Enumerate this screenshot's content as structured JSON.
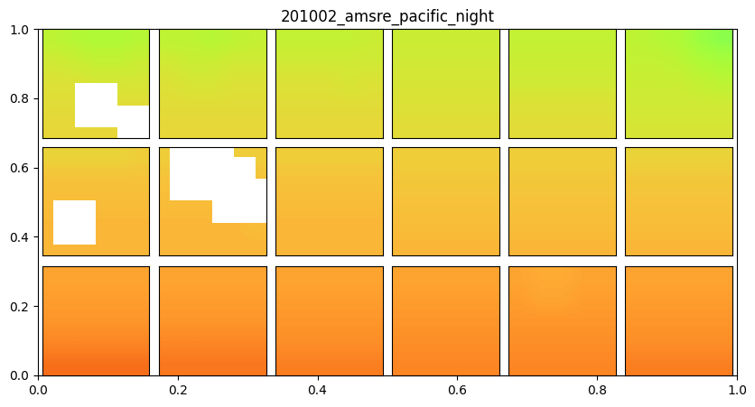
{
  "chart_data": {
    "type": "image_grid",
    "title": "201002_amsre_pacific_night",
    "xlim": [
      0,
      1
    ],
    "ylim": [
      0,
      1
    ],
    "xticks": [
      {
        "value": 0,
        "label": "0.0"
      },
      0.2,
      0.4,
      0.6,
      0.8,
      {
        "value": 1,
        "label": "1.0"
      }
    ],
    "yticks": [
      {
        "value": 0,
        "label": "0.0"
      },
      0.2,
      0.4,
      0.6,
      0.8,
      {
        "value": 1,
        "label": "1.0"
      }
    ],
    "color": "turbo",
    "color_range": [
      0,
      1
    ],
    "panels": [
      [
        [
          [
            0.54,
            0.53,
            0.52,
            0.52,
            0.53
          ],
          [
            0.57,
            0.56,
            0.55,
            0.55,
            0.56
          ],
          [
            0.59,
            0.59,
            0.58,
            0.58,
            0.58
          ],
          [
            0.6,
            0.6,
            null,
            0.6,
            0.6
          ],
          [
            0.61,
            0.61,
            0.61,
            0.61,
            null
          ]
        ],
        [
          [
            0.54,
            0.54,
            0.53,
            0.54,
            0.55
          ],
          [
            0.57,
            0.56,
            0.56,
            0.57,
            0.57
          ],
          [
            0.59,
            0.58,
            0.58,
            0.59,
            0.59
          ],
          [
            0.6,
            0.6,
            0.6,
            0.6,
            0.6
          ],
          [
            0.61,
            0.61,
            0.61,
            0.61,
            0.61
          ]
        ],
        [
          [
            0.55,
            0.55,
            0.55,
            0.55,
            0.56
          ],
          [
            0.57,
            0.57,
            0.57,
            0.57,
            0.57
          ],
          [
            0.59,
            0.59,
            0.59,
            0.58,
            0.59
          ],
          [
            0.6,
            0.6,
            0.6,
            0.6,
            0.6
          ],
          [
            0.61,
            0.61,
            0.61,
            0.61,
            0.61
          ]
        ],
        [
          [
            0.56,
            0.56,
            0.56,
            0.56,
            0.56
          ],
          [
            0.57,
            0.57,
            0.57,
            0.57,
            0.57
          ],
          [
            0.58,
            0.58,
            0.58,
            0.58,
            0.58
          ],
          [
            0.59,
            0.59,
            0.59,
            0.59,
            0.59
          ],
          [
            0.6,
            0.6,
            0.6,
            0.6,
            0.6
          ]
        ],
        [
          [
            0.55,
            0.55,
            0.55,
            0.55,
            0.55
          ],
          [
            0.56,
            0.56,
            0.56,
            0.56,
            0.56
          ],
          [
            0.57,
            0.57,
            0.57,
            0.57,
            0.57
          ],
          [
            0.59,
            0.59,
            0.59,
            0.59,
            0.59
          ],
          [
            0.6,
            0.6,
            0.6,
            0.6,
            0.6
          ]
        ],
        [
          [
            0.54,
            0.53,
            0.52,
            0.49,
            0.47
          ],
          [
            0.55,
            0.55,
            0.54,
            0.52,
            0.51
          ],
          [
            0.56,
            0.56,
            0.56,
            0.55,
            0.54
          ],
          [
            0.57,
            0.57,
            0.57,
            0.57,
            0.57
          ],
          [
            0.58,
            0.58,
            0.58,
            0.58,
            0.58
          ]
        ]
      ],
      [
        [
          [
            0.62,
            0.62,
            0.62,
            0.62,
            0.63
          ],
          [
            0.65,
            0.65,
            0.65,
            0.65,
            0.65
          ],
          [
            0.66,
            0.66,
            0.66,
            0.66,
            0.66
          ],
          [
            0.67,
            null,
            0.67,
            0.67,
            0.67
          ],
          [
            0.67,
            0.67,
            0.67,
            0.67,
            0.67
          ]
        ],
        [
          [
            0.63,
            null,
            null,
            0.63,
            0.63
          ],
          [
            0.65,
            null,
            null,
            null,
            0.65
          ],
          [
            0.66,
            0.66,
            0.66,
            null,
            null
          ],
          [
            0.67,
            0.67,
            0.67,
            0.67,
            0.66
          ],
          [
            0.67,
            0.67,
            0.67,
            0.67,
            0.67
          ]
        ],
        [
          [
            0.63,
            0.63,
            0.63,
            0.63,
            0.63
          ],
          [
            0.65,
            0.65,
            0.65,
            0.65,
            0.65
          ],
          [
            0.66,
            0.66,
            0.66,
            0.66,
            0.66
          ],
          [
            0.67,
            0.67,
            0.67,
            0.67,
            0.67
          ],
          [
            0.67,
            0.67,
            0.67,
            0.67,
            0.67
          ]
        ],
        [
          [
            0.63,
            0.63,
            0.63,
            0.63,
            0.63
          ],
          [
            0.64,
            0.64,
            0.64,
            0.64,
            0.64
          ],
          [
            0.65,
            0.65,
            0.65,
            0.65,
            0.65
          ],
          [
            0.66,
            0.66,
            0.66,
            0.66,
            0.66
          ],
          [
            0.67,
            0.67,
            0.67,
            0.67,
            0.67
          ]
        ],
        [
          [
            0.63,
            0.63,
            0.63,
            0.63,
            0.63
          ],
          [
            0.64,
            0.64,
            0.64,
            0.64,
            0.64
          ],
          [
            0.65,
            0.65,
            0.65,
            0.65,
            0.65
          ],
          [
            0.66,
            0.66,
            0.66,
            0.66,
            0.66
          ],
          [
            0.67,
            0.67,
            0.67,
            0.67,
            0.67
          ]
        ],
        [
          [
            0.62,
            0.62,
            0.62,
            0.62,
            0.62
          ],
          [
            0.64,
            0.64,
            0.64,
            0.64,
            0.64
          ],
          [
            0.65,
            0.65,
            0.65,
            0.65,
            0.65
          ],
          [
            0.66,
            0.66,
            0.66,
            0.66,
            0.66
          ],
          [
            0.67,
            0.67,
            0.67,
            0.67,
            0.67
          ]
        ]
      ],
      [
        [
          [
            0.7,
            0.7,
            0.7,
            0.7,
            0.7
          ],
          [
            0.71,
            0.71,
            0.71,
            0.71,
            0.71
          ],
          [
            0.72,
            0.72,
            0.72,
            0.72,
            0.72
          ],
          [
            0.74,
            0.74,
            0.74,
            0.74,
            0.74
          ],
          [
            0.77,
            0.77,
            0.77,
            0.77,
            0.77
          ]
        ],
        [
          [
            0.7,
            0.7,
            0.7,
            0.7,
            0.7
          ],
          [
            0.71,
            0.71,
            0.71,
            0.71,
            0.71
          ],
          [
            0.72,
            0.72,
            0.72,
            0.72,
            0.72
          ],
          [
            0.74,
            0.74,
            0.74,
            0.74,
            0.74
          ],
          [
            0.76,
            0.76,
            0.76,
            0.76,
            0.76
          ]
        ],
        [
          [
            0.7,
            0.7,
            0.7,
            0.7,
            0.7
          ],
          [
            0.71,
            0.71,
            0.71,
            0.71,
            0.71
          ],
          [
            0.72,
            0.72,
            0.72,
            0.72,
            0.72
          ],
          [
            0.73,
            0.73,
            0.73,
            0.73,
            0.73
          ],
          [
            0.75,
            0.75,
            0.75,
            0.75,
            0.75
          ]
        ],
        [
          [
            0.7,
            0.7,
            0.7,
            0.7,
            0.7
          ],
          [
            0.71,
            0.71,
            0.71,
            0.71,
            0.71
          ],
          [
            0.72,
            0.72,
            0.72,
            0.72,
            0.72
          ],
          [
            0.73,
            0.73,
            0.73,
            0.73,
            0.73
          ],
          [
            0.74,
            0.74,
            0.74,
            0.74,
            0.74
          ]
        ],
        [
          [
            0.7,
            0.69,
            0.69,
            0.7,
            0.7
          ],
          [
            0.71,
            0.7,
            0.7,
            0.71,
            0.71
          ],
          [
            0.72,
            0.72,
            0.72,
            0.72,
            0.72
          ],
          [
            0.73,
            0.73,
            0.73,
            0.73,
            0.73
          ],
          [
            0.74,
            0.74,
            0.74,
            0.74,
            0.74
          ]
        ],
        [
          [
            0.7,
            0.7,
            0.7,
            0.7,
            0.7
          ],
          [
            0.71,
            0.71,
            0.71,
            0.71,
            0.71
          ],
          [
            0.72,
            0.72,
            0.72,
            0.72,
            0.72
          ],
          [
            0.73,
            0.73,
            0.73,
            0.73,
            0.73
          ],
          [
            0.75,
            0.75,
            0.75,
            0.75,
            0.75
          ]
        ]
      ]
    ]
  }
}
